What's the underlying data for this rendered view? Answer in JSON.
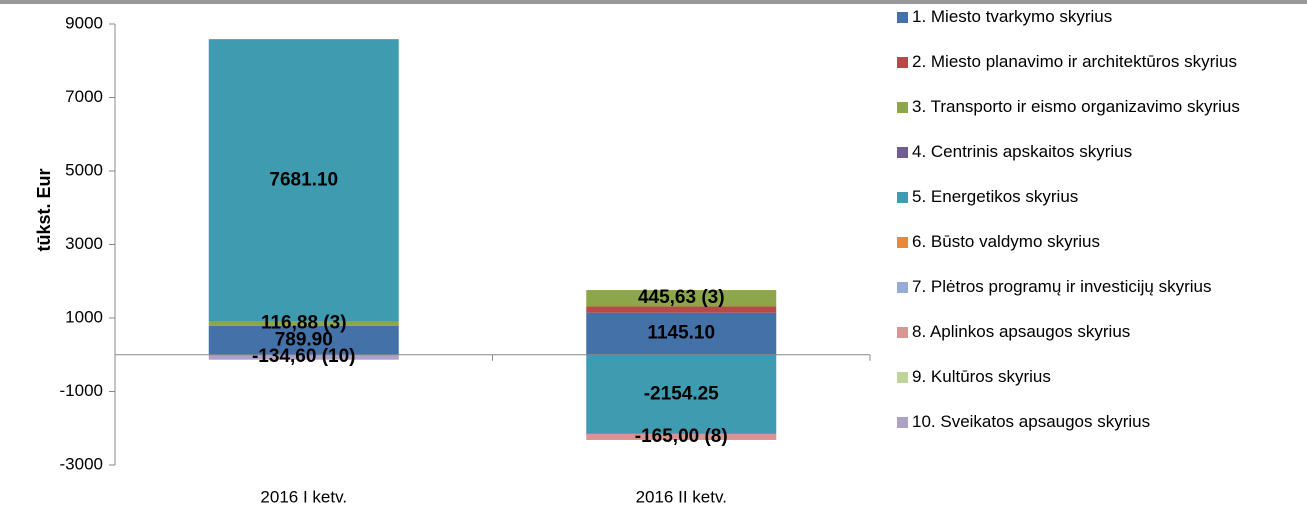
{
  "chart_data": {
    "type": "bar",
    "stacked": true,
    "y_label": "tūkst. Eur",
    "categories": [
      "2016 I ketv.",
      "2016 II ketv."
    ],
    "ylim": [
      -3000,
      9000
    ],
    "yticks": [
      -3000,
      -1000,
      1000,
      3000,
      5000,
      7000,
      9000
    ],
    "series": [
      {
        "name": "1. Miesto tvarkymo skyrius",
        "color": "#4472a8",
        "values": [
          789.9,
          1145.1
        ],
        "value_labels": [
          "789.90",
          "1145.10"
        ]
      },
      {
        "name": "2. Miesto planavimo ir architektūros skyrius",
        "color": "#b54a47",
        "values": [
          null,
          170
        ],
        "value_labels": [
          null,
          null
        ]
      },
      {
        "name": "3. Transporto ir eismo organizavimo skyrius",
        "color": "#8ea64a",
        "values": [
          116.88,
          445.63
        ],
        "value_labels": [
          "116,88 (3)",
          "445,63 (3)"
        ]
      },
      {
        "name": "4. Centrinis apskaitos skyrius",
        "color": "#725c94",
        "values": [
          null,
          null
        ],
        "value_labels": [
          null,
          null
        ]
      },
      {
        "name": "5. Energetikos skyrius",
        "color": "#3e9bb0",
        "values": [
          7681.1,
          -2154.25
        ],
        "value_labels": [
          "7681.10",
          "-2154.25"
        ]
      },
      {
        "name": "6. Būsto valdymo skyrius",
        "color": "#e8883a",
        "values": [
          null,
          null
        ],
        "value_labels": [
          null,
          null
        ]
      },
      {
        "name": "7. Plėtros programų ir investicijų skyrius",
        "color": "#96abd6",
        "values": [
          null,
          null
        ],
        "value_labels": [
          null,
          null
        ]
      },
      {
        "name": "8. Aplinkos apsaugos skyrius",
        "color": "#d99592",
        "values": [
          null,
          -165
        ],
        "value_labels": [
          null,
          "-165,00 (8)"
        ]
      },
      {
        "name": "9. Kultūros skyrius",
        "color": "#bdd49a",
        "values": [
          null,
          null
        ],
        "value_labels": [
          null,
          null
        ]
      },
      {
        "name": "10. Sveikatos apsaugos skyrius",
        "color": "#ada1c6",
        "values": [
          -134.6,
          null
        ],
        "value_labels": [
          "-134,60 (10)",
          null
        ]
      }
    ]
  }
}
